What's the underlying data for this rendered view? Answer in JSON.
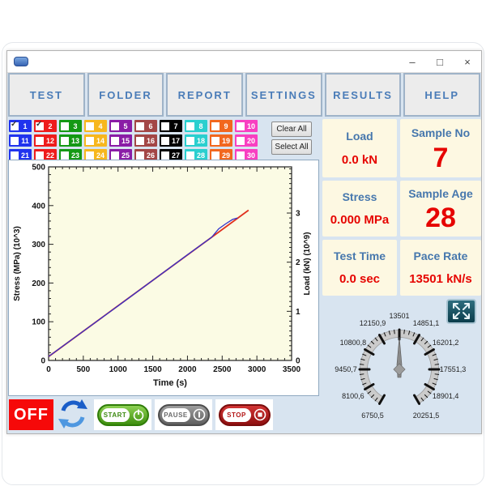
{
  "window": {
    "controls": {
      "minimize": "–",
      "maximize": "□",
      "close": "×"
    }
  },
  "toolbar": {
    "buttons": [
      "TEST",
      "FOLDER",
      "REPORT",
      "SETTINGS",
      "RESULTS",
      "HELP"
    ]
  },
  "channels": {
    "clear_all": "Clear All",
    "select_all": "Select All",
    "column_colors": [
      "#2033ee",
      "#ee1c1c",
      "#149914",
      "#f7b71e",
      "#8a1da6",
      "#a34646",
      "#000000",
      "#2acfcf",
      "#f2671e",
      "#f83fc1"
    ],
    "items": [
      {
        "num": "1",
        "checked": true
      },
      {
        "num": "2",
        "checked": true
      },
      {
        "num": "3",
        "checked": false
      },
      {
        "num": "4",
        "checked": false
      },
      {
        "num": "5",
        "checked": false
      },
      {
        "num": "6",
        "checked": false
      },
      {
        "num": "7",
        "checked": false
      },
      {
        "num": "8",
        "checked": false
      },
      {
        "num": "9",
        "checked": false
      },
      {
        "num": "10",
        "checked": false
      },
      {
        "num": "11",
        "checked": false
      },
      {
        "num": "12",
        "checked": false
      },
      {
        "num": "13",
        "checked": false
      },
      {
        "num": "14",
        "checked": false
      },
      {
        "num": "15",
        "checked": false
      },
      {
        "num": "16",
        "checked": false
      },
      {
        "num": "17",
        "checked": false
      },
      {
        "num": "18",
        "checked": false
      },
      {
        "num": "19",
        "checked": false
      },
      {
        "num": "20",
        "checked": false
      },
      {
        "num": "21",
        "checked": false
      },
      {
        "num": "22",
        "checked": false
      },
      {
        "num": "23",
        "checked": false
      },
      {
        "num": "24",
        "checked": false
      },
      {
        "num": "25",
        "checked": false
      },
      {
        "num": "26",
        "checked": false
      },
      {
        "num": "27",
        "checked": false
      },
      {
        "num": "28",
        "checked": false
      },
      {
        "num": "29",
        "checked": false
      },
      {
        "num": "30",
        "checked": false
      }
    ]
  },
  "readouts": [
    {
      "label": "Load",
      "value": "0.0 kN",
      "large": false
    },
    {
      "label": "Sample No",
      "value": "7",
      "large": true
    },
    {
      "label": "Stress",
      "value": "0.000 MPa",
      "large": false
    },
    {
      "label": "Sample Age",
      "value": "28",
      "large": true
    },
    {
      "label": "Test Time",
      "value": "0.0 sec",
      "large": false
    },
    {
      "label": "Pace Rate",
      "value": "13501 kN/s",
      "large": false
    }
  ],
  "gauge": {
    "labels": [
      "6750,5",
      "8100,6",
      "9450,7",
      "10800,8",
      "12150,9",
      "13501",
      "14851,1",
      "16201,2",
      "17551,3",
      "18901,4",
      "20251,5"
    ],
    "needle_label": "13501"
  },
  "controls": {
    "off": "OFF",
    "start": "START",
    "pause": "PAUSE",
    "stop": "STOP"
  },
  "chart_data": {
    "type": "line",
    "xlabel": "Time (s)",
    "ylabel_left": "Stress (MPa) (10^3)",
    "ylabel_right": "Load (kN) (10^9)",
    "xlim": [
      0,
      3500
    ],
    "ylim_left": [
      0,
      500
    ],
    "ylim_right": [
      0,
      3.94
    ],
    "x_ticks": [
      0,
      500,
      1000,
      1500,
      2000,
      2500,
      3000,
      3500
    ],
    "y_ticks_left": [
      0,
      100,
      200,
      300,
      400,
      500
    ],
    "y_ticks_right": [
      0,
      1,
      2,
      3
    ],
    "x_minor_step": 100,
    "y_minor_step_left": 20,
    "y_minor_step_right": 0.1,
    "plot_bg": "#fbfbe4",
    "grid": false,
    "legend": "none",
    "series": [
      {
        "name": "Stress",
        "axis": "left",
        "color": "#e0301e",
        "points": [
          [
            0,
            10
          ],
          [
            2880,
            388
          ]
        ]
      },
      {
        "name": "Load",
        "axis": "right",
        "color": "#3333cc",
        "points": [
          [
            0,
            0.08
          ],
          [
            1000,
            1.11
          ],
          [
            2000,
            2.15
          ],
          [
            2350,
            2.51
          ],
          [
            2450,
            2.68
          ],
          [
            2550,
            2.78
          ],
          [
            2650,
            2.87
          ],
          [
            2720,
            2.9
          ]
        ]
      }
    ]
  }
}
